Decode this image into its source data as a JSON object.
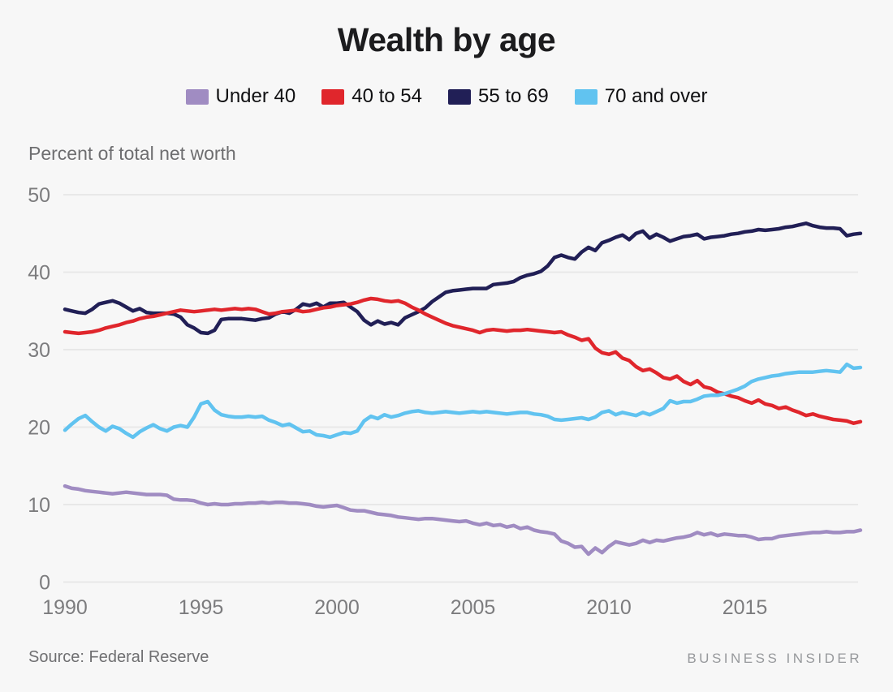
{
  "header": {
    "title": "Wealth by age"
  },
  "subtitle": "Percent of total net worth",
  "footer": {
    "source": "Source: Federal Reserve",
    "brand": "BUSINESS INSIDER"
  },
  "colors": {
    "background": "#f7f7f7",
    "gridline": "#e8e8e8",
    "axis_text": "#7c7c7e",
    "title_text": "#1c1c1e"
  },
  "chart_data": {
    "type": "line",
    "title": "Wealth by age",
    "ylabel": "Percent of total net worth",
    "xlabel": "",
    "x_start": 1990,
    "x_step": 0.25,
    "x_end": 2019.25,
    "ylim": [
      0,
      50
    ],
    "yticks": [
      0,
      10,
      20,
      30,
      40,
      50
    ],
    "xticks": [
      1990,
      1995,
      2000,
      2005,
      2010,
      2015
    ],
    "grid": true,
    "legend_position": "top",
    "series": [
      {
        "name": "Under 40",
        "color": "#a08cc2",
        "values": [
          12.4,
          12.1,
          12.0,
          11.8,
          11.7,
          11.6,
          11.5,
          11.4,
          11.5,
          11.6,
          11.5,
          11.4,
          11.3,
          11.3,
          11.3,
          11.2,
          10.7,
          10.6,
          10.6,
          10.5,
          10.2,
          10.0,
          10.1,
          10.0,
          10.0,
          10.1,
          10.1,
          10.2,
          10.2,
          10.3,
          10.2,
          10.3,
          10.3,
          10.2,
          10.2,
          10.1,
          10.0,
          9.8,
          9.7,
          9.8,
          9.9,
          9.6,
          9.3,
          9.2,
          9.2,
          9.0,
          8.8,
          8.7,
          8.6,
          8.4,
          8.3,
          8.2,
          8.1,
          8.2,
          8.2,
          8.1,
          8.0,
          7.9,
          7.8,
          7.9,
          7.6,
          7.4,
          7.6,
          7.3,
          7.4,
          7.1,
          7.3,
          6.9,
          7.1,
          6.7,
          6.5,
          6.4,
          6.2,
          5.3,
          5.0,
          4.5,
          4.6,
          3.6,
          4.4,
          3.8,
          4.6,
          5.2,
          5.0,
          4.8,
          5.0,
          5.4,
          5.1,
          5.4,
          5.3,
          5.5,
          5.7,
          5.8,
          6.0,
          6.4,
          6.1,
          6.3,
          6.0,
          6.2,
          6.1,
          6.0,
          6.0,
          5.8,
          5.5,
          5.6,
          5.6,
          5.9,
          6.0,
          6.1,
          6.2,
          6.3,
          6.4,
          6.4,
          6.5,
          6.4,
          6.4,
          6.5,
          6.5,
          6.7
        ]
      },
      {
        "name": "55 to 69",
        "color": "#211f56",
        "values": [
          35.2,
          35.0,
          34.8,
          34.7,
          35.2,
          35.9,
          36.1,
          36.3,
          36.0,
          35.5,
          35.0,
          35.3,
          34.8,
          34.7,
          34.7,
          34.7,
          34.6,
          34.2,
          33.2,
          32.8,
          32.2,
          32.1,
          32.5,
          33.9,
          34.0,
          34.0,
          34.0,
          33.9,
          33.8,
          34.0,
          34.1,
          34.6,
          34.9,
          34.7,
          35.2,
          35.9,
          35.7,
          36.0,
          35.5,
          36.0,
          36.0,
          36.1,
          35.5,
          34.9,
          33.8,
          33.2,
          33.7,
          33.3,
          33.5,
          33.2,
          34.1,
          34.5,
          34.9,
          35.4,
          36.2,
          36.8,
          37.4,
          37.6,
          37.7,
          37.8,
          37.9,
          37.9,
          37.9,
          38.4,
          38.5,
          38.6,
          38.8,
          39.3,
          39.6,
          39.8,
          40.1,
          40.8,
          41.9,
          42.2,
          41.9,
          41.7,
          42.6,
          43.2,
          42.8,
          43.8,
          44.1,
          44.5,
          44.8,
          44.2,
          45.0,
          45.3,
          44.4,
          44.9,
          44.5,
          44.0,
          44.3,
          44.6,
          44.7,
          44.9,
          44.3,
          44.5,
          44.6,
          44.7,
          44.9,
          45.0,
          45.2,
          45.3,
          45.5,
          45.4,
          45.5,
          45.6,
          45.8,
          45.9,
          46.1,
          46.3,
          46.0,
          45.8,
          45.7,
          45.7,
          45.6,
          44.7,
          44.9,
          45.0
        ]
      },
      {
        "name": "40 to 54",
        "color": "#e0262c",
        "values": [
          32.3,
          32.2,
          32.1,
          32.2,
          32.3,
          32.5,
          32.8,
          33.0,
          33.2,
          33.5,
          33.7,
          34.0,
          34.2,
          34.3,
          34.5,
          34.7,
          34.9,
          35.1,
          35.0,
          34.9,
          35.0,
          35.1,
          35.2,
          35.1,
          35.2,
          35.3,
          35.2,
          35.3,
          35.2,
          34.9,
          34.6,
          34.7,
          34.9,
          35.0,
          35.1,
          34.9,
          35.0,
          35.2,
          35.4,
          35.5,
          35.7,
          35.8,
          35.9,
          36.1,
          36.4,
          36.6,
          36.5,
          36.3,
          36.2,
          36.3,
          36.0,
          35.5,
          35.1,
          34.6,
          34.2,
          33.8,
          33.4,
          33.1,
          32.9,
          32.7,
          32.5,
          32.2,
          32.5,
          32.6,
          32.5,
          32.4,
          32.5,
          32.5,
          32.6,
          32.5,
          32.4,
          32.3,
          32.2,
          32.3,
          31.9,
          31.6,
          31.2,
          31.4,
          30.2,
          29.6,
          29.4,
          29.7,
          28.9,
          28.6,
          27.8,
          27.3,
          27.5,
          27.0,
          26.4,
          26.2,
          26.6,
          25.9,
          25.5,
          26.0,
          25.2,
          25.0,
          24.5,
          24.3,
          24.0,
          23.8,
          23.4,
          23.1,
          23.5,
          23.0,
          22.8,
          22.4,
          22.6,
          22.2,
          21.9,
          21.5,
          21.7,
          21.4,
          21.2,
          21.0,
          20.9,
          20.8,
          20.5,
          20.7
        ]
      },
      {
        "name": "70 and over",
        "color": "#61c3f0",
        "values": [
          19.6,
          20.4,
          21.1,
          21.5,
          20.7,
          20.0,
          19.5,
          20.1,
          19.8,
          19.2,
          18.7,
          19.4,
          19.9,
          20.3,
          19.8,
          19.5,
          20.0,
          20.2,
          20.0,
          21.3,
          23.0,
          23.3,
          22.2,
          21.6,
          21.4,
          21.3,
          21.3,
          21.4,
          21.3,
          21.4,
          20.9,
          20.6,
          20.2,
          20.4,
          19.9,
          19.4,
          19.5,
          19.0,
          18.9,
          18.7,
          19.0,
          19.3,
          19.2,
          19.5,
          20.8,
          21.4,
          21.1,
          21.6,
          21.3,
          21.5,
          21.8,
          22.0,
          22.1,
          21.9,
          21.8,
          21.9,
          22.0,
          21.9,
          21.8,
          21.9,
          22.0,
          21.9,
          22.0,
          21.9,
          21.8,
          21.7,
          21.8,
          21.9,
          21.9,
          21.7,
          21.6,
          21.4,
          21.0,
          20.9,
          21.0,
          21.1,
          21.2,
          21.0,
          21.3,
          21.9,
          22.1,
          21.6,
          21.9,
          21.7,
          21.5,
          21.9,
          21.6,
          22.0,
          22.4,
          23.4,
          23.1,
          23.3,
          23.3,
          23.6,
          24.0,
          24.1,
          24.1,
          24.3,
          24.6,
          24.9,
          25.3,
          25.9,
          26.2,
          26.4,
          26.6,
          26.7,
          26.9,
          27.0,
          27.1,
          27.1,
          27.1,
          27.2,
          27.3,
          27.2,
          27.1,
          28.1,
          27.6,
          27.7
        ]
      }
    ],
    "legend_order": [
      "Under 40",
      "40 to 54",
      "55 to 69",
      "70 and over"
    ]
  }
}
